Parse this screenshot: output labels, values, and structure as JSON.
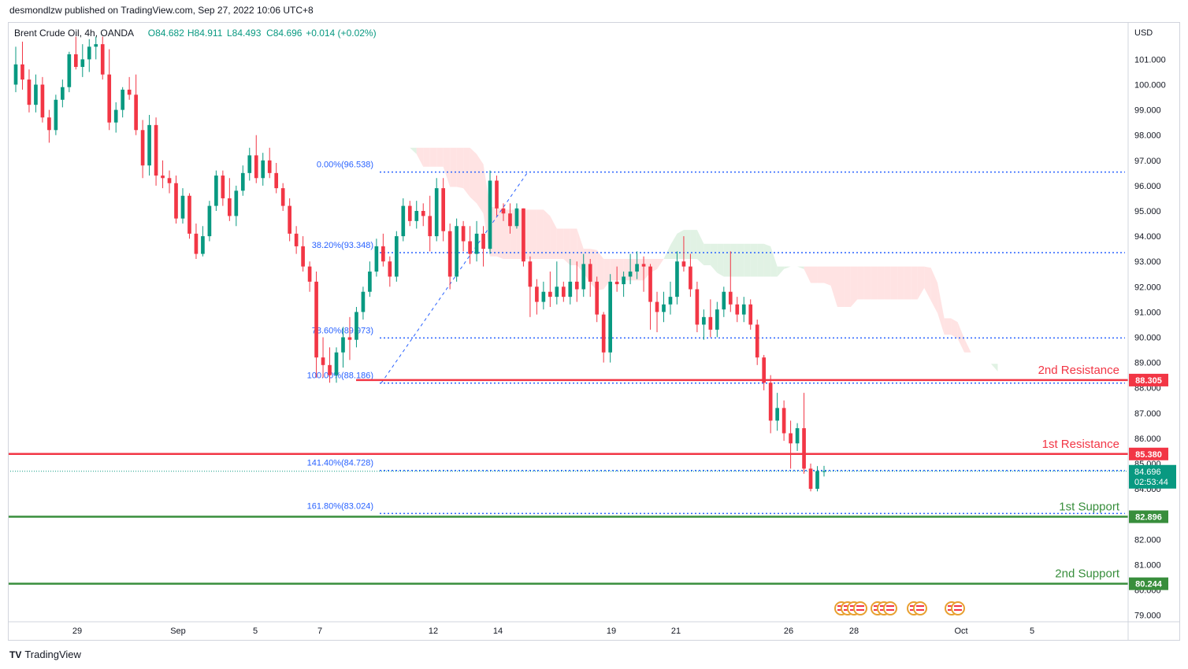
{
  "header": {
    "published": "desmondlzw published on TradingView.com, Sep 27, 2022 10:06 UTC+8"
  },
  "legend": {
    "symbol": "Brent Crude Oil, 4h, OANDA",
    "o": "O84.682",
    "h": "H84.911",
    "l": "L84.493",
    "c": "C84.696",
    "chg": "+0.014 (+0.02%)"
  },
  "footer": {
    "brand": "TradingView",
    "logo": "TV"
  },
  "chart_data": {
    "type": "candlestick",
    "currency": "USD",
    "ylim": [
      78.5,
      102.0
    ],
    "y_ticks": [
      "101.000",
      "100.000",
      "99.000",
      "98.000",
      "97.000",
      "96.000",
      "95.000",
      "94.000",
      "93.000",
      "92.000",
      "91.000",
      "90.000",
      "89.000",
      "88.000",
      "87.000",
      "86.000",
      "85.000",
      "84.000",
      "83.000",
      "82.000",
      "81.000",
      "80.000",
      "79.000"
    ],
    "x_ticks": [
      "29",
      "Sep",
      "5",
      "7",
      "12",
      "14",
      "19",
      "21",
      "26",
      "28",
      "Oct",
      "5"
    ],
    "fib_levels": [
      {
        "label": "0.00%(96.538)",
        "value": 96.538
      },
      {
        "label": "38.20%(93.348)",
        "value": 93.348
      },
      {
        "label": "78.60%(89.973)",
        "value": 89.973
      },
      {
        "label": "100.00%(88.186)",
        "value": 88.186
      },
      {
        "label": "141.40%(84.728)",
        "value": 84.728
      },
      {
        "label": "161.80%(83.024)",
        "value": 83.024
      }
    ],
    "levels": [
      {
        "name": "2nd Resistance",
        "value": 88.305,
        "label": "88.305",
        "color": "#f23645"
      },
      {
        "name": "1st Resistance",
        "value": 85.38,
        "label": "85.380",
        "color": "#f23645"
      },
      {
        "name": "1st Support",
        "value": 82.896,
        "label": "82.896",
        "color": "#388e3c"
      },
      {
        "name": "2nd Support",
        "value": 80.244,
        "label": "80.244",
        "color": "#388e3c"
      }
    ],
    "last_price": {
      "value": 84.696,
      "label": "84.696",
      "countdown": "02:53:44",
      "color": "#089981"
    },
    "colors": {
      "up": "#089981",
      "down": "#f23645",
      "fib": "#2962ff",
      "cloud_bear": "#ffd9d9",
      "cloud_bull": "#d7eedb"
    },
    "candles": [
      [
        100.0,
        101.5,
        99.7,
        100.8
      ],
      [
        100.8,
        101.7,
        99.8,
        100.2
      ],
      [
        100.2,
        100.6,
        98.9,
        99.2
      ],
      [
        99.2,
        100.4,
        98.9,
        100.0
      ],
      [
        100.0,
        100.3,
        98.5,
        98.7
      ],
      [
        98.7,
        99.0,
        97.7,
        98.2
      ],
      [
        98.2,
        99.6,
        98.0,
        99.4
      ],
      [
        99.4,
        100.2,
        99.1,
        99.9
      ],
      [
        99.9,
        101.3,
        99.7,
        101.2
      ],
      [
        101.2,
        101.9,
        100.6,
        100.7
      ],
      [
        100.7,
        101.6,
        100.3,
        101.0
      ],
      [
        101.0,
        101.8,
        100.5,
        101.5
      ],
      [
        101.5,
        101.9,
        101.0,
        101.6
      ],
      [
        101.6,
        101.9,
        100.2,
        100.4
      ],
      [
        100.4,
        101.4,
        98.2,
        98.5
      ],
      [
        98.5,
        99.3,
        98.1,
        99.0
      ],
      [
        99.0,
        99.9,
        98.7,
        99.8
      ],
      [
        99.8,
        100.3,
        99.4,
        99.6
      ],
      [
        99.6,
        100.4,
        98.0,
        98.2
      ],
      [
        98.2,
        98.6,
        96.3,
        96.8
      ],
      [
        96.8,
        98.8,
        96.4,
        98.4
      ],
      [
        98.4,
        98.7,
        96.0,
        96.4
      ],
      [
        96.4,
        97.0,
        95.9,
        96.3
      ],
      [
        96.3,
        96.6,
        95.7,
        96.1
      ],
      [
        96.1,
        96.4,
        94.5,
        94.7
      ],
      [
        94.7,
        95.9,
        94.5,
        95.6
      ],
      [
        95.6,
        95.7,
        93.9,
        94.1
      ],
      [
        94.1,
        94.5,
        93.1,
        93.3
      ],
      [
        93.3,
        94.4,
        93.2,
        94.0
      ],
      [
        94.0,
        95.4,
        93.8,
        95.2
      ],
      [
        95.2,
        96.6,
        95.0,
        96.4
      ],
      [
        96.4,
        96.6,
        95.2,
        95.5
      ],
      [
        95.5,
        96.3,
        94.6,
        94.8
      ],
      [
        94.8,
        96.0,
        94.4,
        95.8
      ],
      [
        95.8,
        96.8,
        95.6,
        96.5
      ],
      [
        96.5,
        97.5,
        96.2,
        97.2
      ],
      [
        97.2,
        98.0,
        96.1,
        96.3
      ],
      [
        96.3,
        97.3,
        96.0,
        97.0
      ],
      [
        97.0,
        97.5,
        96.3,
        96.5
      ],
      [
        96.5,
        96.9,
        95.7,
        95.9
      ],
      [
        95.9,
        96.1,
        95.0,
        95.2
      ],
      [
        95.2,
        95.5,
        93.8,
        94.1
      ],
      [
        94.1,
        94.4,
        93.3,
        93.6
      ],
      [
        93.6,
        94.0,
        92.6,
        92.8
      ],
      [
        92.8,
        93.0,
        91.8,
        92.2
      ],
      [
        92.2,
        92.6,
        88.4,
        89.2
      ],
      [
        89.2,
        90.0,
        88.4,
        88.9
      ],
      [
        88.9,
        89.6,
        88.2,
        88.5
      ],
      [
        88.5,
        89.6,
        88.2,
        89.4
      ],
      [
        89.4,
        90.4,
        88.8,
        90.0
      ],
      [
        90.0,
        90.8,
        89.1,
        89.9
      ],
      [
        89.9,
        91.2,
        89.6,
        91.0
      ],
      [
        91.0,
        92.0,
        90.7,
        91.8
      ],
      [
        91.8,
        93.0,
        91.6,
        92.6
      ],
      [
        92.6,
        93.9,
        92.4,
        93.6
      ],
      [
        93.6,
        94.1,
        92.8,
        93.0
      ],
      [
        93.0,
        93.2,
        92.0,
        92.4
      ],
      [
        92.4,
        94.2,
        92.2,
        94.0
      ],
      [
        94.0,
        95.5,
        93.8,
        95.2
      ],
      [
        95.2,
        95.4,
        94.4,
        94.6
      ],
      [
        94.6,
        95.4,
        94.3,
        95.0
      ],
      [
        95.0,
        95.3,
        94.4,
        94.8
      ],
      [
        94.8,
        95.6,
        93.4,
        94.0
      ],
      [
        94.0,
        96.3,
        93.8,
        95.9
      ],
      [
        95.9,
        96.3,
        93.8,
        94.2
      ],
      [
        94.2,
        94.5,
        91.9,
        92.4
      ],
      [
        92.4,
        94.7,
        92.2,
        94.4
      ],
      [
        94.4,
        94.6,
        93.4,
        93.8
      ],
      [
        93.8,
        94.4,
        92.9,
        93.3
      ],
      [
        93.3,
        94.6,
        93.0,
        94.1
      ],
      [
        94.1,
        94.4,
        92.8,
        93.5
      ],
      [
        93.5,
        96.6,
        93.3,
        96.2
      ],
      [
        96.2,
        96.4,
        94.8,
        95.1
      ],
      [
        95.1,
        95.3,
        94.6,
        94.9
      ],
      [
        94.9,
        95.3,
        94.1,
        94.4
      ],
      [
        94.4,
        95.3,
        94.3,
        95.1
      ],
      [
        95.1,
        95.1,
        92.8,
        93.0
      ],
      [
        93.0,
        93.2,
        90.8,
        92.0
      ],
      [
        92.0,
        92.3,
        90.9,
        91.4
      ],
      [
        91.4,
        92.2,
        91.1,
        91.8
      ],
      [
        91.8,
        92.6,
        91.2,
        91.6
      ],
      [
        91.6,
        93.0,
        91.3,
        92.0
      ],
      [
        92.0,
        92.2,
        91.4,
        91.6
      ],
      [
        91.6,
        93.1,
        91.3,
        92.2
      ],
      [
        92.2,
        93.0,
        91.4,
        91.9
      ],
      [
        91.9,
        93.3,
        91.6,
        92.9
      ],
      [
        92.9,
        93.1,
        91.6,
        92.2
      ],
      [
        92.2,
        92.4,
        90.6,
        90.9
      ],
      [
        90.9,
        91.0,
        89.0,
        89.4
      ],
      [
        89.4,
        92.5,
        89.0,
        92.2
      ],
      [
        92.2,
        92.8,
        91.8,
        92.1
      ],
      [
        92.1,
        92.6,
        91.6,
        92.4
      ],
      [
        92.4,
        93.3,
        92.1,
        92.6
      ],
      [
        92.6,
        93.4,
        92.3,
        92.9
      ],
      [
        92.9,
        93.2,
        91.8,
        92.8
      ],
      [
        92.8,
        92.9,
        90.3,
        91.4
      ],
      [
        91.4,
        91.8,
        90.2,
        91.0
      ],
      [
        91.0,
        91.8,
        90.6,
        91.3
      ],
      [
        91.3,
        92.2,
        90.9,
        91.6
      ],
      [
        91.6,
        93.4,
        91.3,
        93.0
      ],
      [
        93.0,
        94.0,
        92.6,
        92.8
      ],
      [
        92.8,
        93.3,
        91.6,
        91.9
      ],
      [
        91.9,
        92.2,
        90.2,
        90.5
      ],
      [
        90.5,
        91.1,
        89.9,
        90.8
      ],
      [
        90.8,
        91.5,
        90.0,
        90.3
      ],
      [
        90.3,
        91.4,
        90.0,
        91.1
      ],
      [
        91.1,
        92.0,
        90.8,
        91.8
      ],
      [
        91.8,
        93.4,
        91.0,
        91.3
      ],
      [
        91.3,
        91.6,
        90.6,
        90.9
      ],
      [
        90.9,
        91.6,
        90.6,
        91.3
      ],
      [
        91.3,
        91.5,
        90.3,
        90.5
      ],
      [
        90.5,
        90.7,
        88.9,
        89.2
      ],
      [
        89.2,
        89.3,
        87.9,
        88.2
      ],
      [
        88.2,
        88.5,
        86.2,
        86.7
      ],
      [
        86.7,
        87.8,
        86.3,
        87.2
      ],
      [
        87.2,
        87.5,
        85.9,
        86.2
      ],
      [
        86.2,
        86.7,
        84.8,
        85.8
      ],
      [
        85.8,
        86.6,
        85.5,
        86.4
      ],
      [
        86.4,
        87.8,
        84.6,
        84.8
      ],
      [
        84.8,
        85.0,
        83.9,
        84.0
      ],
      [
        84.0,
        84.9,
        83.9,
        84.7
      ],
      [
        84.68,
        84.91,
        84.49,
        84.7
      ]
    ]
  }
}
